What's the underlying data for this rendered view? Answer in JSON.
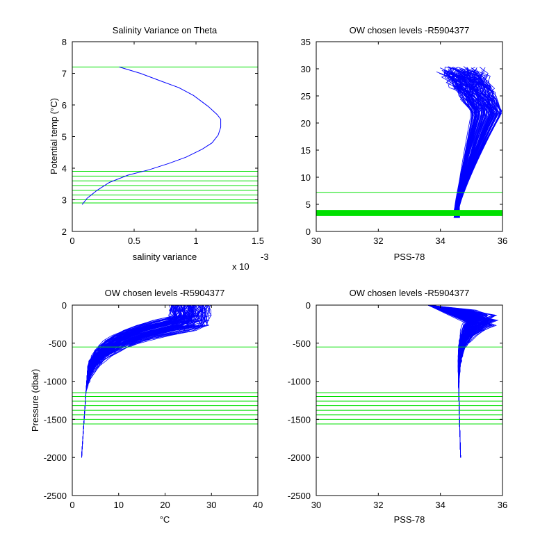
{
  "chart_data": [
    {
      "type": "line",
      "title": "Salinity Variance on Theta",
      "xlabel": "salinity variance",
      "ylabel": "Potential temp (°C)",
      "x_multiplier_label": "x 10",
      "x_multiplier_exponent": "-3",
      "xlim": [
        0,
        1.5
      ],
      "ylim": [
        2,
        8
      ],
      "xticks": [
        "0",
        "0.5",
        "1",
        "1.5"
      ],
      "yticks": [
        "2",
        "3",
        "4",
        "5",
        "6",
        "7",
        "8"
      ],
      "series": [
        {
          "color": "#0000ff",
          "x": [
            0.08,
            0.12,
            0.2,
            0.3,
            0.45,
            0.62,
            0.78,
            0.92,
            1.05,
            1.13,
            1.18,
            1.2,
            1.2,
            1.17,
            1.1,
            0.98,
            0.86,
            0.72,
            0.55,
            0.38
          ],
          "y": [
            2.85,
            3.05,
            3.3,
            3.55,
            3.78,
            3.95,
            4.15,
            4.35,
            4.6,
            4.8,
            5.05,
            5.3,
            5.55,
            5.7,
            5.95,
            6.3,
            6.55,
            6.75,
            7.0,
            7.2
          ]
        }
      ],
      "hlines": [
        7.2,
        3.9,
        3.75,
        3.6,
        3.45,
        3.3,
        3.15,
        3.0,
        2.9
      ],
      "hline_color": "#00e000"
    },
    {
      "type": "line",
      "title": "OW chosen levels -R5904377",
      "xlabel": "PSS-78",
      "ylabel": "",
      "xlim": [
        30,
        36
      ],
      "ylim": [
        0,
        35
      ],
      "xticks": [
        "30",
        "32",
        "34",
        "36"
      ],
      "yticks": [
        "0",
        "5",
        "10",
        "15",
        "20",
        "25",
        "30",
        "35"
      ],
      "profile_color": "#0000ff",
      "hlines": [
        7.2,
        3.9,
        3.75,
        3.6,
        3.45,
        3.3,
        3.15,
        3.0,
        2.9
      ],
      "hline_color": "#00e000"
    },
    {
      "type": "line",
      "title": "OW chosen levels -R5904377",
      "xlabel": "°C",
      "ylabel": "Pressure (dbar)",
      "xlim": [
        0,
        40
      ],
      "ylim": [
        -2500,
        0
      ],
      "xticks": [
        "0",
        "10",
        "20",
        "30",
        "40"
      ],
      "yticks": [
        "-2500",
        "-2000",
        "-1500",
        "-1000",
        "-500",
        "0"
      ],
      "profile_color": "#0000ff",
      "hlines": [
        -550,
        -1150,
        -1200,
        -1260,
        -1320,
        -1380,
        -1440,
        -1500,
        -1560
      ],
      "hline_color": "#00e000"
    },
    {
      "type": "line",
      "title": "OW chosen levels -R5904377",
      "xlabel": "PSS-78",
      "ylabel": "",
      "xlim": [
        30,
        36
      ],
      "ylim": [
        -2500,
        0
      ],
      "xticks": [
        "30",
        "32",
        "34",
        "36"
      ],
      "yticks": [
        "-2500",
        "-2000",
        "-1500",
        "-1000",
        "-500",
        "0"
      ],
      "profile_color": "#0000ff",
      "hlines": [
        -550,
        -1150,
        -1200,
        -1260,
        -1320,
        -1380,
        -1440,
        -1500,
        -1560
      ],
      "hline_color": "#00e000"
    }
  ]
}
